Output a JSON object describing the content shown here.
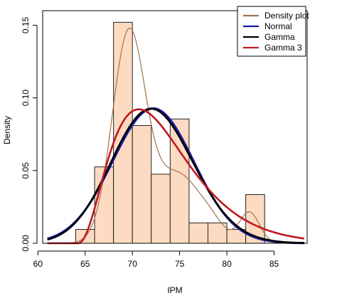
{
  "chart_data": {
    "type": "bar",
    "xlabel": "IPM",
    "ylabel": "Density",
    "xlim": [
      60.5,
      88.5
    ],
    "ylim": [
      0,
      0.16
    ],
    "x_ticks": [
      60,
      65,
      70,
      75,
      80,
      85
    ],
    "x_tick_labels": [
      "60",
      "65",
      "70",
      "75",
      "80",
      "85"
    ],
    "y_ticks": [
      0.0,
      0.05,
      0.1,
      0.15
    ],
    "y_tick_labels": [
      "0.00",
      "0.05",
      "0.10",
      "0.15"
    ],
    "histogram": {
      "fill": "#FDDBC2",
      "bins": [
        {
          "start": 64,
          "end": 66,
          "density": 0.0095
        },
        {
          "start": 66,
          "end": 68,
          "density": 0.0525
        },
        {
          "start": 68,
          "end": 70,
          "density": 0.152
        },
        {
          "start": 70,
          "end": 72,
          "density": 0.081
        },
        {
          "start": 72,
          "end": 74,
          "density": 0.0475
        },
        {
          "start": 74,
          "end": 76,
          "density": 0.0855
        },
        {
          "start": 76,
          "end": 78,
          "density": 0.014
        },
        {
          "start": 78,
          "end": 80,
          "density": 0.014
        },
        {
          "start": 80,
          "end": 82,
          "density": 0.0095
        },
        {
          "start": 82,
          "end": 84,
          "density": 0.0335
        }
      ]
    },
    "series": [
      {
        "name": "Density plot",
        "color": "#A0734B",
        "kind": "kde"
      },
      {
        "name": "Normal",
        "color": "#1A1AA0",
        "kind": "normal",
        "mean": 72.2,
        "sd": 4.3
      },
      {
        "name": "Gamma",
        "color": "#000000",
        "kind": "gamma"
      },
      {
        "name": "Gamma 3",
        "color": "#C0181D",
        "kind": "gamma3"
      }
    ],
    "legend_position": "top-right",
    "grid": false
  }
}
